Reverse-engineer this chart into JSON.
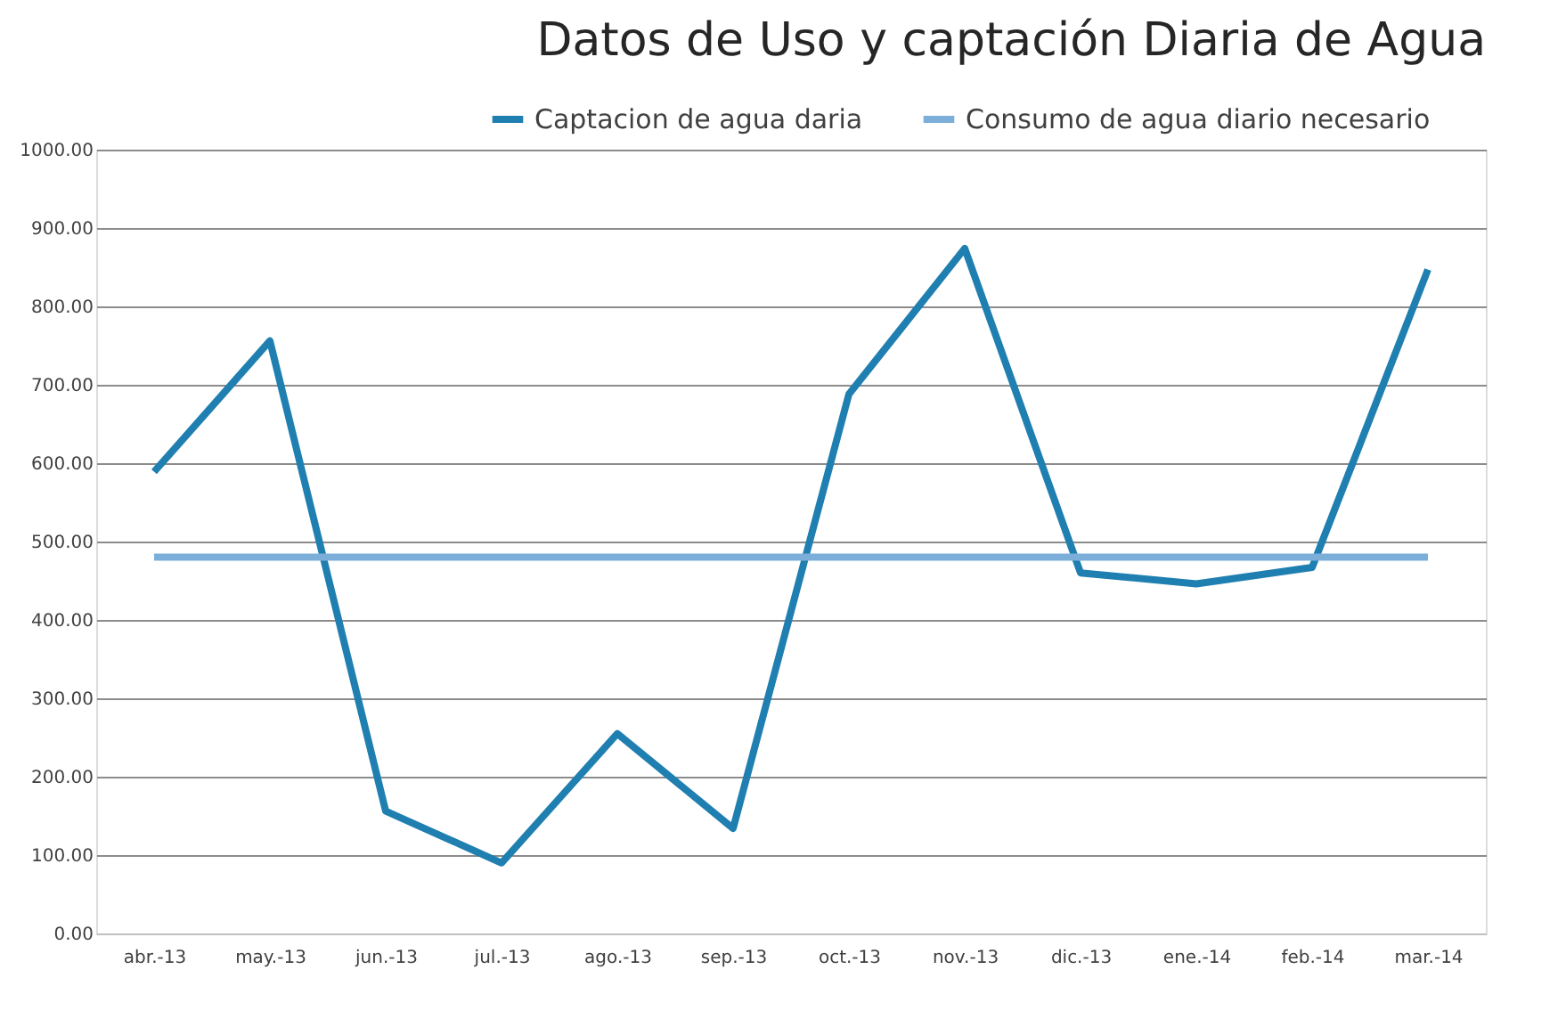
{
  "chart_data": {
    "type": "line",
    "title": "Datos de Uso y captación Diaria de Agua",
    "categories": [
      "abr.-13",
      "may.-13",
      "jun.-13",
      "jul.-13",
      "ago.-13",
      "sep.-13",
      "oct.-13",
      "nov.-13",
      "dic.-13",
      "ene.-14",
      "feb.-14",
      "mar.-14"
    ],
    "series": [
      {
        "name": "Captacion de agua daria",
        "color": "#1f7fb0",
        "values": [
          589,
          756,
          156,
          90,
          255,
          134,
          688,
          874,
          460,
          446,
          467,
          847
        ]
      },
      {
        "name": "Consumo de agua diario  necesario",
        "color": "#7bafd9",
        "values": [
          480,
          480,
          480,
          480,
          480,
          480,
          480,
          480,
          480,
          480,
          480,
          480
        ]
      }
    ],
    "ylim": [
      0,
      1000
    ],
    "yticks": [
      {
        "value": 0,
        "label": "0.00"
      },
      {
        "value": 100,
        "label": "100.00"
      },
      {
        "value": 200,
        "label": "200.00"
      },
      {
        "value": 300,
        "label": "300.00"
      },
      {
        "value": 400,
        "label": "400.00"
      },
      {
        "value": 500,
        "label": "500.00"
      },
      {
        "value": 600,
        "label": "600.00"
      },
      {
        "value": 700,
        "label": "700.00"
      },
      {
        "value": 800,
        "label": "800.00"
      },
      {
        "value": 900,
        "label": "900.00"
      },
      {
        "value": 1000,
        "label": "1000.00"
      }
    ],
    "grid": "y",
    "legend": "top right",
    "marker": "none",
    "line_style": "solid"
  }
}
